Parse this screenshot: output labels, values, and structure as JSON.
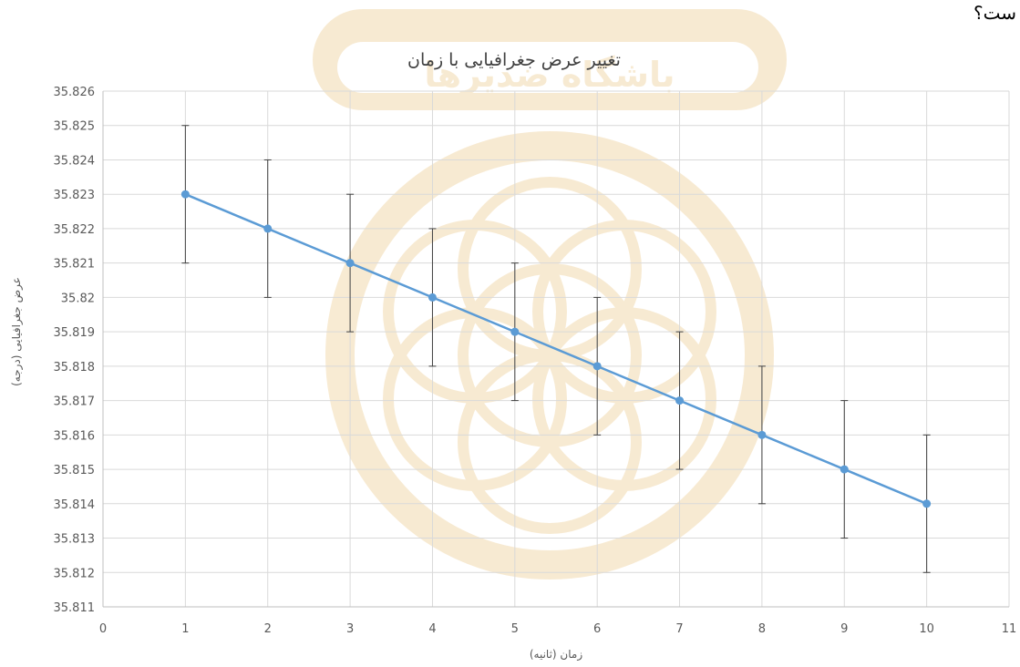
{
  "header": {
    "corner_text": "ست؟"
  },
  "watermark": {
    "text": "باشگاه ضدیرها"
  },
  "chart_data": {
    "type": "line",
    "title": "تغییر عرض جغرافیایی با زمان",
    "xlabel": "زمان (ثانیه)",
    "ylabel": "عرض جغرافیایی (درجه)",
    "xlim": [
      0,
      11
    ],
    "ylim": [
      35.811,
      35.826
    ],
    "x_ticks": [
      "0",
      "1",
      "2",
      "3",
      "4",
      "5",
      "6",
      "7",
      "8",
      "9",
      "10",
      "11"
    ],
    "y_ticks": [
      "35.826",
      "35.825",
      "35.824",
      "35.823",
      "35.822",
      "35.821",
      "35.82",
      "35.819",
      "35.818",
      "35.817",
      "35.816",
      "35.815",
      "35.814",
      "35.813",
      "35.812",
      "35.811"
    ],
    "grid": true,
    "series": [
      {
        "x": [
          1,
          2,
          3,
          4,
          5,
          6,
          7,
          8,
          9,
          10
        ],
        "y": [
          35.823,
          35.822,
          35.821,
          35.82,
          35.819,
          35.818,
          35.817,
          35.816,
          35.815,
          35.814
        ],
        "error": 0.002,
        "color": "#5b9bd5"
      }
    ],
    "error_bar_color": "#404040"
  }
}
